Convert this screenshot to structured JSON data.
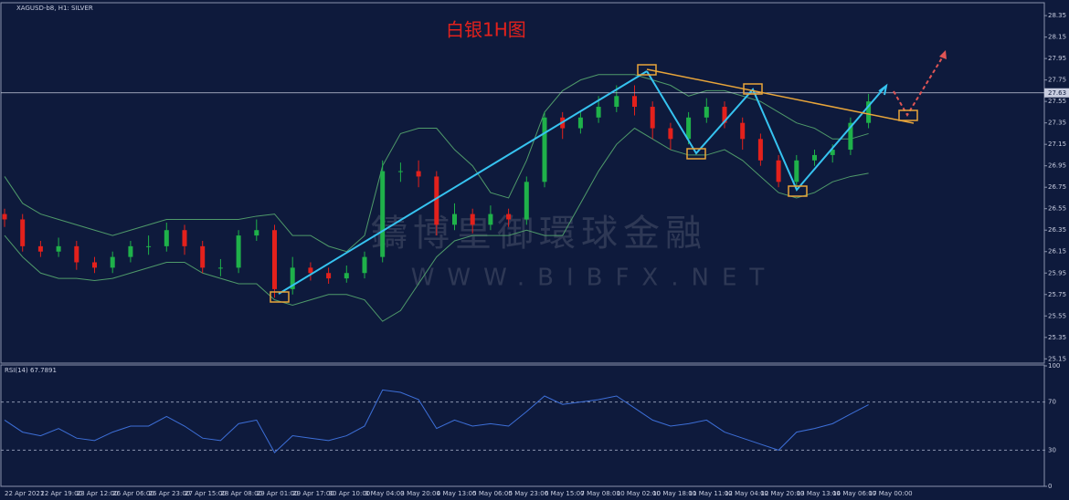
{
  "chart_data": [
    {
      "type": "candlestick",
      "symbol": "XAGUSD-b8, H1: SILVER",
      "title": "白银1H图",
      "watermark": [
        "鑄博皇御環球金融",
        "WWW.BIBFX.NET"
      ],
      "categories": [
        "22 Apr 2021",
        null,
        "22 Apr 19:00",
        null,
        "23 Apr 12:00",
        null,
        "26 Apr 06:00",
        null,
        "26 Apr 23:00",
        null,
        "27 Apr 15:00",
        null,
        "28 Apr 08:00",
        null,
        "29 Apr 01:00",
        null,
        "29 Apr 17:00",
        null,
        "30 Apr 10:00",
        null,
        "3 May 04:00",
        null,
        "3 May 20:00",
        null,
        "4 May 13:00",
        null,
        "5 May 06:00",
        null,
        "5 May 23:00",
        null,
        "6 May 15:00",
        null,
        "7 May 08:00",
        null,
        "10 May 02:00",
        null,
        "10 May 18:00",
        null,
        "11 May 11:00",
        null,
        "12 May 04:00",
        null,
        "12 May 20:00",
        null,
        "13 May 13:00",
        null,
        "14 May 06:00",
        null,
        "17 May 00:00"
      ],
      "open": [
        26.5,
        26.45,
        26.2,
        26.15,
        26.2,
        26.05,
        26.0,
        26.1,
        26.2,
        26.2,
        26.35,
        26.2,
        26.0,
        26.0,
        26.3,
        26.35,
        25.8,
        26.0,
        25.95,
        25.9,
        25.95,
        26.1,
        26.9,
        26.9,
        26.85,
        26.4,
        26.5,
        26.4,
        26.5,
        26.45,
        26.8,
        27.4,
        27.3,
        27.4,
        27.5,
        27.6,
        27.5,
        27.3,
        27.2,
        27.4,
        27.5,
        27.35,
        27.2,
        27.0,
        26.8,
        27.0,
        27.05,
        27.1,
        27.35
      ],
      "high": [
        26.55,
        26.5,
        26.25,
        26.28,
        26.25,
        26.1,
        26.15,
        26.25,
        26.3,
        26.42,
        26.4,
        26.25,
        26.08,
        26.35,
        26.45,
        26.4,
        26.1,
        26.05,
        26.0,
        26.02,
        26.15,
        27.0,
        26.98,
        27.0,
        26.9,
        26.6,
        26.55,
        26.58,
        26.55,
        26.85,
        27.45,
        27.45,
        27.45,
        27.6,
        27.7,
        27.7,
        27.55,
        27.35,
        27.45,
        27.58,
        27.55,
        27.4,
        27.25,
        27.05,
        27.05,
        27.1,
        27.15,
        27.4,
        27.62
      ],
      "low": [
        26.38,
        26.15,
        26.1,
        26.1,
        25.98,
        25.95,
        25.95,
        26.05,
        26.12,
        26.15,
        26.12,
        25.95,
        25.92,
        25.95,
        26.25,
        25.72,
        25.75,
        25.88,
        25.85,
        25.86,
        25.9,
        26.05,
        26.8,
        26.75,
        26.3,
        26.35,
        26.32,
        26.35,
        26.38,
        26.4,
        26.75,
        27.2,
        27.25,
        27.35,
        27.45,
        27.42,
        27.2,
        27.1,
        27.15,
        27.35,
        27.3,
        27.1,
        26.95,
        26.75,
        26.75,
        26.95,
        26.98,
        27.05,
        27.3
      ],
      "close": [
        26.45,
        26.2,
        26.15,
        26.2,
        26.05,
        26.0,
        26.1,
        26.2,
        26.2,
        26.35,
        26.2,
        26.0,
        26.0,
        26.3,
        26.35,
        25.8,
        26.0,
        25.95,
        25.9,
        25.95,
        26.1,
        26.9,
        26.9,
        26.85,
        26.4,
        26.5,
        26.4,
        26.5,
        26.45,
        26.8,
        27.4,
        27.3,
        27.4,
        27.5,
        27.6,
        27.5,
        27.3,
        27.2,
        27.4,
        27.5,
        27.35,
        27.2,
        27.0,
        26.8,
        27.0,
        27.05,
        27.1,
        27.35,
        27.55
      ],
      "up_color": "#1fb14a",
      "down_color": "#e3211c",
      "bands": {
        "color": "#4f9a6a",
        "upper": [
          26.85,
          26.6,
          26.5,
          26.45,
          26.4,
          26.35,
          26.3,
          26.35,
          26.4,
          26.45,
          26.45,
          26.45,
          26.45,
          26.45,
          26.48,
          26.5,
          26.3,
          26.3,
          26.2,
          26.15,
          26.3,
          26.95,
          27.25,
          27.3,
          27.3,
          27.1,
          26.95,
          26.7,
          26.65,
          27.0,
          27.45,
          27.65,
          27.75,
          27.8,
          27.8,
          27.8,
          27.75,
          27.7,
          27.6,
          27.65,
          27.65,
          27.6,
          27.55,
          27.45,
          27.35,
          27.3,
          27.2,
          27.2,
          27.25
        ],
        "lower": [
          26.3,
          26.1,
          25.95,
          25.9,
          25.9,
          25.88,
          25.9,
          25.95,
          26.0,
          26.05,
          26.05,
          25.95,
          25.9,
          25.85,
          25.85,
          25.7,
          25.65,
          25.7,
          25.75,
          25.75,
          25.7,
          25.5,
          25.6,
          25.85,
          26.1,
          26.25,
          26.3,
          26.3,
          26.3,
          26.35,
          26.3,
          26.3,
          26.6,
          26.9,
          27.15,
          27.3,
          27.2,
          27.1,
          27.05,
          27.05,
          27.1,
          27.0,
          26.85,
          26.7,
          26.65,
          26.7,
          26.8,
          26.85,
          26.88
        ]
      },
      "last_price": 27.63,
      "ylim": [
        25.11,
        28.47
      ],
      "yticks": [
        25.15,
        25.35,
        25.55,
        25.75,
        25.95,
        26.15,
        26.35,
        26.55,
        26.75,
        26.95,
        27.15,
        27.35,
        27.55,
        27.75,
        27.95,
        28.15,
        28.35
      ]
    },
    {
      "type": "line",
      "series": [
        {
          "name": "RSI(14)",
          "color": "#3d6fd8",
          "values": [
            55,
            45,
            42,
            48,
            40,
            38,
            45,
            50,
            50,
            58,
            50,
            40,
            38,
            52,
            55,
            28,
            42,
            40,
            38,
            42,
            50,
            80,
            78,
            72,
            48,
            55,
            50,
            52,
            50,
            62,
            75,
            68,
            70,
            72,
            75,
            65,
            55,
            50,
            52,
            55,
            45,
            40,
            35,
            30,
            45,
            48,
            52,
            60,
            67.7891
          ]
        }
      ],
      "ylim": [
        0,
        100
      ],
      "yticks": [
        0,
        30,
        70,
        100
      ]
    }
  ]
}
